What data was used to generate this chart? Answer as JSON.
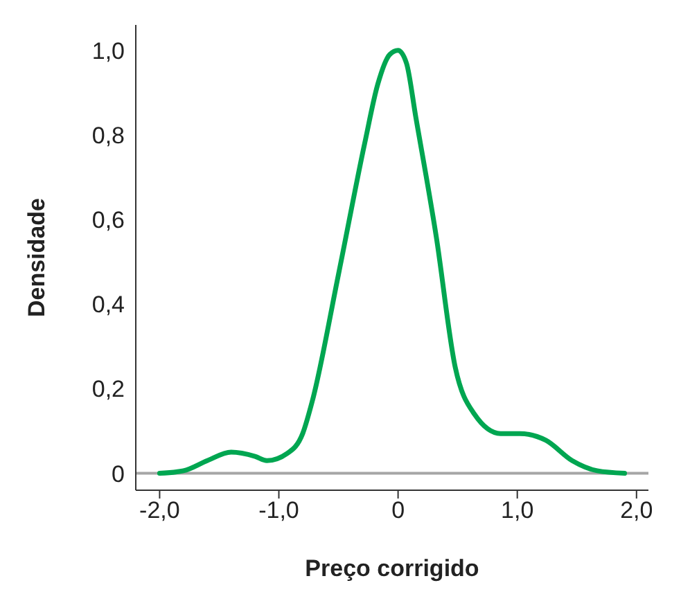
{
  "chart_data": {
    "type": "line",
    "xlabel": "Preço corrigido",
    "ylabel": "Densidade",
    "x": [
      -2.0,
      -1.8,
      -1.6,
      -1.4,
      -1.2,
      -1.1,
      -0.93,
      -0.8,
      -0.72,
      -0.5,
      -0.28,
      -0.17,
      -0.07,
      0,
      0.07,
      0.15,
      0.32,
      0.48,
      0.64,
      0.86,
      1.02,
      1.24,
      1.46,
      1.67,
      1.9
    ],
    "series": [
      {
        "color": "#00a651",
        "values": [
          0,
          0.006,
          0.03,
          0.05,
          0.04,
          0.03,
          0.047,
          0.094,
          0.17,
          0.47,
          0.78,
          0.92,
          0.99,
          1.0,
          0.97,
          0.84,
          0.56,
          0.25,
          0.14,
          0.094,
          0.094,
          0.078,
          0.03,
          0.006,
          0
        ]
      }
    ],
    "xlim": [
      -2.2,
      2.1
    ],
    "xticks": [
      {
        "value": -2,
        "label": "-2,0"
      },
      {
        "value": -1,
        "label": "-1,0"
      },
      0,
      {
        "value": 1,
        "label": "1,0"
      },
      {
        "value": 2,
        "label": "2,0"
      }
    ],
    "ylim": [
      -0.04,
      1.06
    ],
    "yticks": [
      0,
      {
        "value": 0.2,
        "label": "0,2"
      },
      {
        "value": 0.4,
        "label": "0,4"
      },
      {
        "value": 0.6,
        "label": "0,6"
      },
      {
        "value": 0.8,
        "label": "0,8"
      },
      {
        "value": 1,
        "label": "1,0"
      }
    ],
    "ref_lines": [
      {
        "axis": "y",
        "value": 0,
        "color": "#a6a6a6"
      }
    ],
    "grid": false,
    "legend": false,
    "marker": "none",
    "line_style": "solid"
  }
}
